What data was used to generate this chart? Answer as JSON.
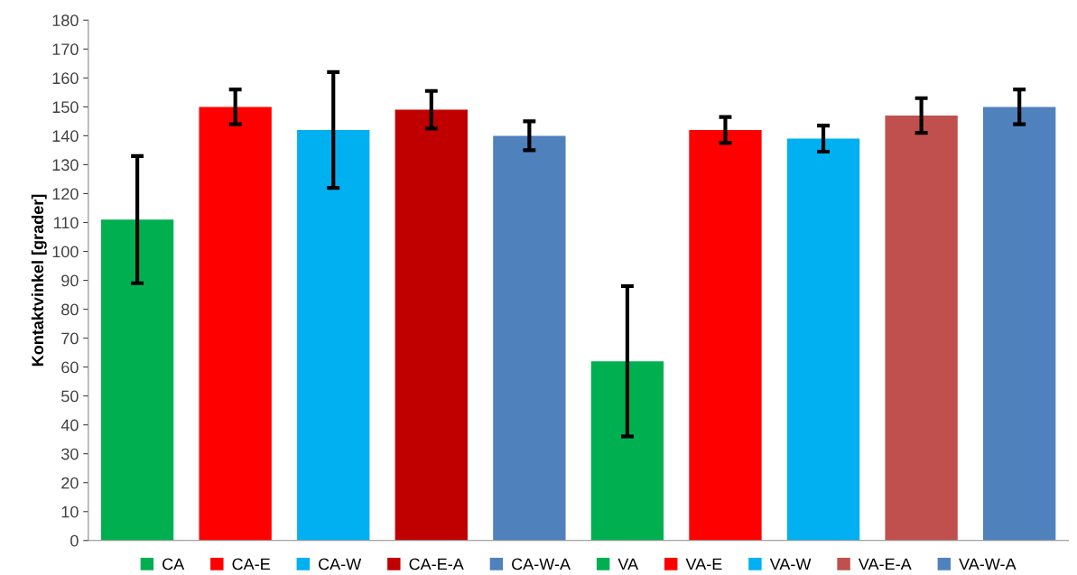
{
  "chart_data": {
    "type": "bar",
    "ylabel": "Kontaktvinkel [grader]",
    "categories": [
      null,
      null,
      null,
      null,
      null,
      null,
      null,
      null,
      null,
      null
    ],
    "series": [
      {
        "name": "CA",
        "color": "#00b050",
        "values": [
          111,
          null,
          null,
          null,
          null,
          null,
          null,
          null,
          null,
          null
        ],
        "errors": [
          22,
          null,
          null,
          null,
          null,
          null,
          null,
          null,
          null,
          null
        ]
      },
      {
        "name": "CA-E",
        "color": "#ff0000",
        "values": [
          null,
          150,
          null,
          null,
          null,
          null,
          null,
          null,
          null,
          null
        ],
        "errors": [
          null,
          6,
          null,
          null,
          null,
          null,
          null,
          null,
          null,
          null
        ]
      },
      {
        "name": "CA-W",
        "color": "#00b0f0",
        "values": [
          null,
          null,
          142,
          null,
          null,
          null,
          null,
          null,
          null,
          null
        ],
        "errors": [
          null,
          null,
          20,
          null,
          null,
          null,
          null,
          null,
          null,
          null
        ]
      },
      {
        "name": "CA-E-A",
        "color": "#c00000",
        "values": [
          null,
          null,
          null,
          149,
          null,
          null,
          null,
          null,
          null,
          null
        ],
        "errors": [
          null,
          null,
          null,
          6.5,
          null,
          null,
          null,
          null,
          null,
          null
        ]
      },
      {
        "name": "CA-W-A",
        "color": "#4f81bd",
        "values": [
          null,
          null,
          null,
          null,
          140,
          null,
          null,
          null,
          null,
          null
        ],
        "errors": [
          null,
          null,
          null,
          null,
          5,
          null,
          null,
          null,
          null,
          null
        ]
      },
      {
        "name": "VA",
        "color": "#00b050",
        "values": [
          null,
          null,
          null,
          null,
          null,
          62,
          null,
          null,
          null,
          null
        ],
        "errors": [
          null,
          null,
          null,
          null,
          null,
          26,
          null,
          null,
          null,
          null
        ]
      },
      {
        "name": "VA-E",
        "color": "#ff0000",
        "values": [
          null,
          null,
          null,
          null,
          null,
          null,
          142,
          null,
          null,
          null
        ],
        "errors": [
          null,
          null,
          null,
          null,
          null,
          null,
          4.5,
          null,
          null,
          null
        ]
      },
      {
        "name": "VA-W",
        "color": "#00b0f0",
        "values": [
          null,
          null,
          null,
          null,
          null,
          null,
          null,
          139,
          null,
          null
        ],
        "errors": [
          null,
          null,
          null,
          null,
          null,
          null,
          null,
          4.5,
          null,
          null
        ]
      },
      {
        "name": "VA-E-A",
        "color": "#c0504d",
        "values": [
          null,
          null,
          null,
          null,
          null,
          null,
          null,
          null,
          147,
          null
        ],
        "errors": [
          null,
          null,
          null,
          null,
          null,
          null,
          null,
          null,
          6,
          null
        ]
      },
      {
        "name": "VA-W-A",
        "color": "#4f81bd",
        "values": [
          null,
          null,
          null,
          null,
          null,
          null,
          null,
          null,
          null,
          150
        ],
        "errors": [
          null,
          null,
          null,
          null,
          null,
          null,
          null,
          null,
          null,
          6
        ]
      }
    ],
    "ylim": [
      0,
      180
    ],
    "yticks": [
      0,
      10,
      20,
      30,
      40,
      50,
      60,
      70,
      80,
      90,
      100,
      110,
      120,
      130,
      140,
      150,
      160,
      170,
      180
    ],
    "grid": false,
    "legend": "bottom"
  }
}
